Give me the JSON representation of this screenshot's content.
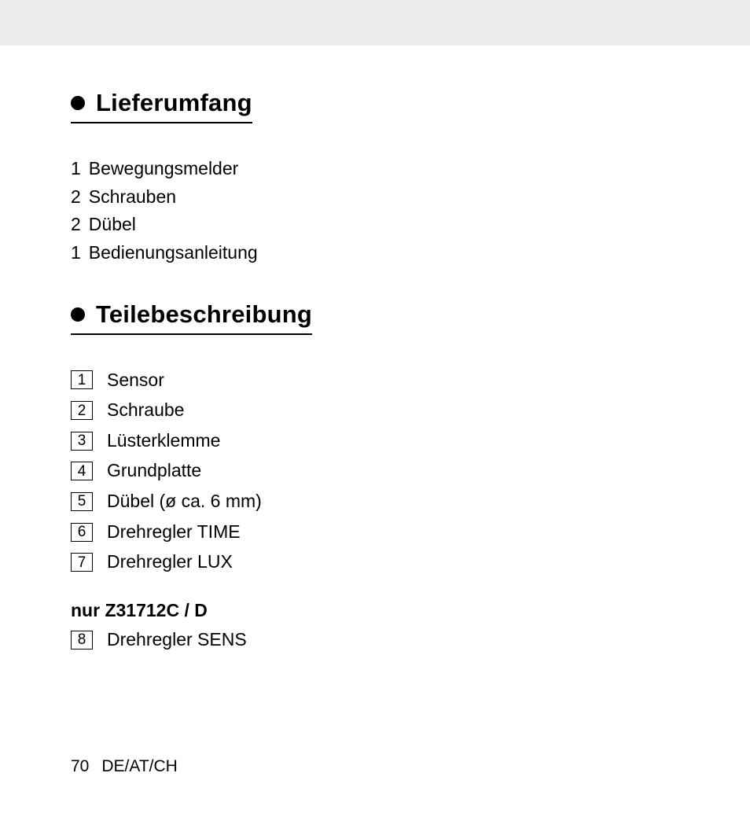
{
  "sections": [
    {
      "title": "Lieferumfang",
      "items": [
        {
          "qty": "1",
          "label": "Bewegungsmelder"
        },
        {
          "qty": "2",
          "label": "Schrauben"
        },
        {
          "qty": "2",
          "label": "Dübel"
        },
        {
          "qty": "1",
          "label": "Bedienungsanleitung"
        }
      ]
    },
    {
      "title": "Teilebeschreibung",
      "parts": [
        {
          "num": "1",
          "label": "Sensor"
        },
        {
          "num": "2",
          "label": "Schraube"
        },
        {
          "num": "3",
          "label": "Lüsterklemme"
        },
        {
          "num": "4",
          "label": "Grundplatte"
        },
        {
          "num": "5",
          "label": "Dübel (ø ca. 6 mm)"
        },
        {
          "num": "6",
          "label": "Drehregler TIME"
        },
        {
          "num": "7",
          "label": "Drehregler LUX"
        }
      ],
      "sub": {
        "title": "nur Z31712C / D",
        "parts": [
          {
            "num": "8",
            "label": "Drehregler SENS"
          }
        ]
      }
    }
  ],
  "footer": {
    "page": "70",
    "region": "DE/AT/CH"
  },
  "colors": {
    "page_bg": "#ffffff",
    "outer_bg": "#ececec",
    "text": "#000000"
  }
}
